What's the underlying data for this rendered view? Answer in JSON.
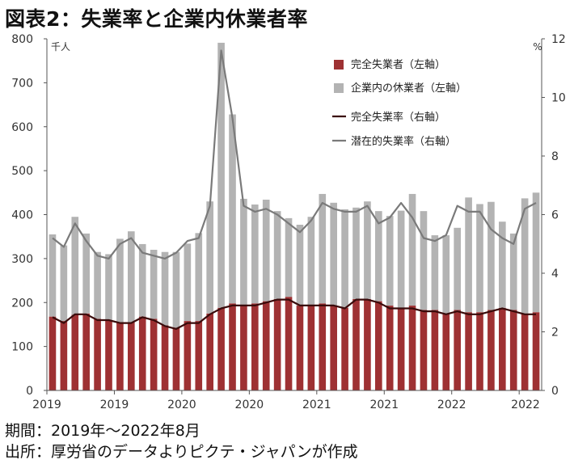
{
  "title": "図表2：失業率と企業内休業者率",
  "footer": {
    "period": "期間：2019年～2022年8月",
    "source": "出所：厚労省のデータよりピクテ・ジャパンが作成"
  },
  "colors": {
    "unemployed": "#9e3133",
    "furloughed": "#b3b3b3",
    "unemp_rate": "#3a0b0b",
    "latent_rate": "#7a7a7a",
    "axis": "#555555"
  },
  "chart_data": {
    "type": "bar",
    "stacked": true,
    "left_axis": {
      "unit": "千人",
      "range": [
        0,
        800
      ],
      "ticks": [
        0,
        100,
        200,
        300,
        400,
        500,
        600,
        700,
        800
      ]
    },
    "right_axis": {
      "unit": "%",
      "range": [
        0,
        12
      ],
      "ticks": [
        0,
        2,
        4,
        6,
        8,
        10,
        12
      ]
    },
    "x_tick_labels": [
      "2019",
      "2019",
      "2020",
      "2020",
      "2021",
      "2021",
      "2022",
      "2022"
    ],
    "legend": {
      "placement": "top-right"
    },
    "grid": false,
    "series": [
      {
        "name": "完全失業者（左軸）",
        "type": "bar",
        "axis": "left",
        "values": [
          168,
          158,
          172,
          175,
          163,
          160,
          155,
          155,
          168,
          163,
          148,
          143,
          158,
          158,
          175,
          188,
          198,
          193,
          198,
          203,
          208,
          213,
          193,
          193,
          198,
          193,
          188,
          208,
          208,
          203,
          193,
          188,
          193,
          183,
          183,
          173,
          183,
          178,
          178,
          183,
          188,
          183,
          175,
          178
        ]
      },
      {
        "name": "企業内の休業者（左軸）",
        "type": "bar",
        "axis": "left",
        "values": [
          187,
          172,
          223,
          182,
          152,
          150,
          190,
          207,
          165,
          157,
          167,
          172,
          176,
          200,
          255,
          603,
          430,
          243,
          225,
          231,
          200,
          179,
          184,
          202,
          249,
          234,
          224,
          208,
          222,
          205,
          204,
          221,
          254,
          225,
          170,
          180,
          187,
          261,
          246,
          246,
          196,
          174,
          262,
          272
        ]
      },
      {
        "name": "完全失業率（右軸）",
        "type": "line",
        "axis": "right",
        "values": [
          2.5,
          2.3,
          2.6,
          2.6,
          2.4,
          2.4,
          2.3,
          2.3,
          2.5,
          2.4,
          2.2,
          2.1,
          2.3,
          2.3,
          2.6,
          2.8,
          2.9,
          2.9,
          2.9,
          3.0,
          3.1,
          3.1,
          2.9,
          2.9,
          2.9,
          2.9,
          2.8,
          3.1,
          3.1,
          3.0,
          2.8,
          2.8,
          2.8,
          2.7,
          2.7,
          2.6,
          2.7,
          2.6,
          2.6,
          2.7,
          2.8,
          2.7,
          2.6,
          2.6
        ]
      },
      {
        "name": "潜在的失業率（右軸）",
        "type": "line",
        "axis": "right",
        "values": [
          5.2,
          4.9,
          5.7,
          5.1,
          4.6,
          4.5,
          5.0,
          5.2,
          4.7,
          4.6,
          4.5,
          4.7,
          5.1,
          5.2,
          6.3,
          11.6,
          9.3,
          6.3,
          6.1,
          6.2,
          6.0,
          5.7,
          5.4,
          5.8,
          6.4,
          6.2,
          6.1,
          6.1,
          6.3,
          5.7,
          5.9,
          6.4,
          5.9,
          5.2,
          5.1,
          5.3,
          6.3,
          6.1,
          6.1,
          5.5,
          5.2,
          5.0,
          6.2,
          6.4
        ]
      }
    ]
  }
}
